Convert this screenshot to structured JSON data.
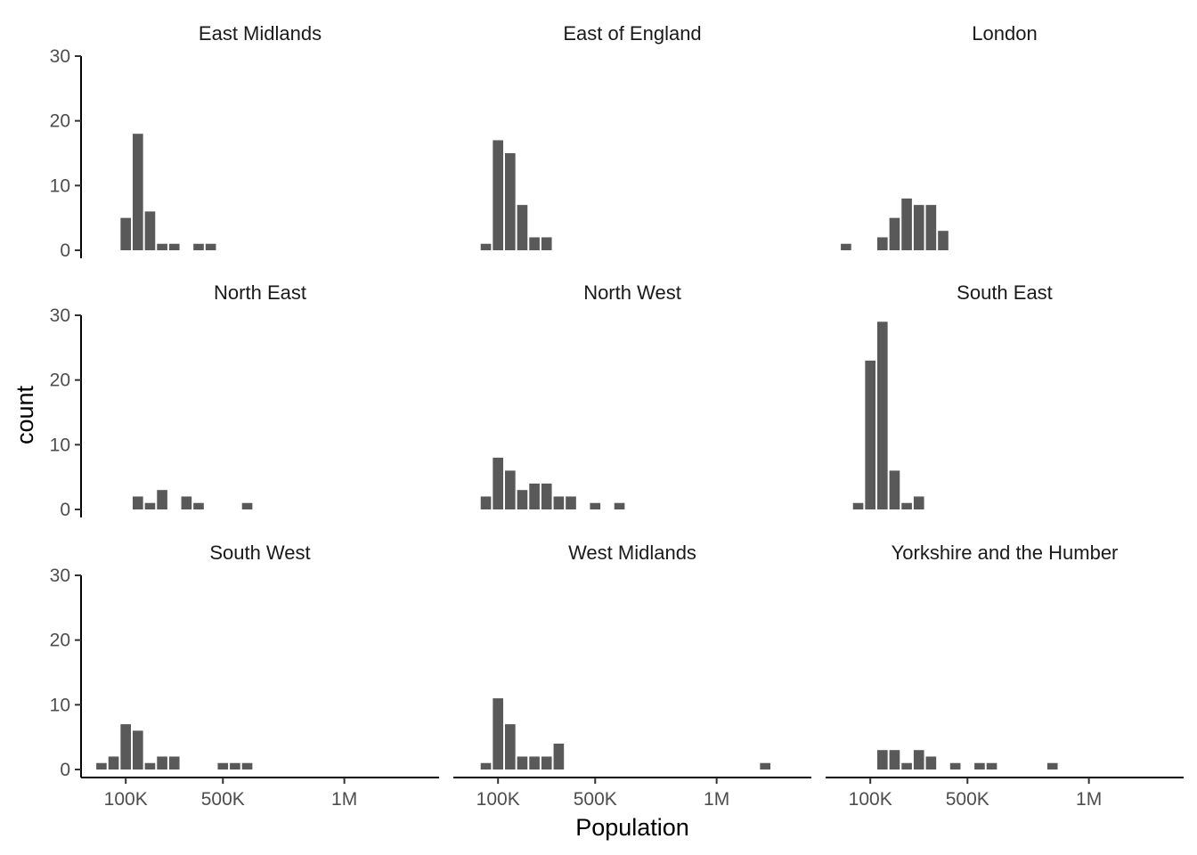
{
  "chart_data": {
    "type": "bar",
    "chart_kind": "faceted-histogram",
    "xlabel": "Population",
    "ylabel": "count",
    "ylim": [
      0,
      30
    ],
    "y_ticks": [
      0,
      10,
      20,
      30
    ],
    "y_tick_labels": [
      "0",
      "10",
      "20",
      "30"
    ],
    "x_ticks": [
      100000,
      500000,
      1000000
    ],
    "x_tick_labels": [
      "100K",
      "500K",
      "1M"
    ],
    "xlim": [
      -84000,
      1390000
    ],
    "bin_width": 50000,
    "bin_start": -25000,
    "bar_color": "#595959",
    "grid": false,
    "facet_layout": {
      "rows": 3,
      "cols": 3
    },
    "facets": [
      {
        "name": "East Midlands",
        "counts": [
          0,
          0,
          5,
          18,
          6,
          1,
          1,
          0,
          1,
          1
        ]
      },
      {
        "name": "East of England",
        "counts": [
          0,
          1,
          17,
          15,
          7,
          2,
          2
        ]
      },
      {
        "name": "London",
        "counts": [
          1,
          0,
          0,
          2,
          5,
          8,
          7,
          7,
          3
        ]
      },
      {
        "name": "North East",
        "counts": [
          0,
          0,
          0,
          2,
          1,
          3,
          0,
          2,
          1,
          0,
          0,
          0,
          1
        ]
      },
      {
        "name": "North West",
        "counts": [
          0,
          2,
          8,
          6,
          3,
          4,
          4,
          2,
          2,
          0,
          1,
          0,
          1
        ]
      },
      {
        "name": "South East",
        "counts": [
          0,
          1,
          23,
          29,
          6,
          1,
          2
        ]
      },
      {
        "name": "South West",
        "counts": [
          1,
          2,
          7,
          6,
          1,
          2,
          2,
          0,
          0,
          0,
          1,
          1,
          1
        ]
      },
      {
        "name": "West Midlands",
        "counts": [
          0,
          1,
          11,
          7,
          2,
          2,
          2,
          4,
          0,
          0,
          0,
          0,
          0,
          0,
          0,
          0,
          0,
          0,
          0,
          0,
          0,
          0,
          0,
          0,
          1
        ]
      },
      {
        "name": "Yorkshire and the Humber",
        "counts": [
          0,
          0,
          0,
          3,
          3,
          1,
          3,
          2,
          0,
          1,
          0,
          1,
          1,
          0,
          0,
          0,
          0,
          1
        ]
      }
    ]
  }
}
